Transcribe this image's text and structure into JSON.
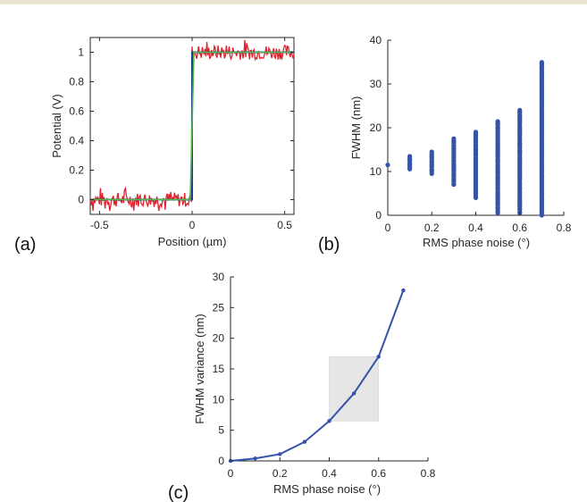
{
  "charts": {
    "a": {
      "panel_label": "(a)",
      "xlabel": "Position (µm)",
      "ylabel": "Potential (V)",
      "xticks": [
        "-0.5",
        "0",
        "0.5"
      ],
      "yticks": [
        "0",
        "0.2",
        "0.4",
        "0.6",
        "0.8",
        "1"
      ]
    },
    "b": {
      "panel_label": "(b)",
      "xlabel": "RMS phase noise (°)",
      "ylabel": "FWHM (nm)",
      "xticks": [
        "0",
        "0.2",
        "0.4",
        "0.6",
        "0.8"
      ],
      "yticks": [
        "0",
        "10",
        "20",
        "30",
        "40"
      ]
    },
    "c": {
      "panel_label": "(c)",
      "xlabel": "RMS phase noise (°)",
      "ylabel": "FWHM variance (nm)",
      "xticks": [
        "0",
        "0.2",
        "0.4",
        "0.6",
        "0.8"
      ],
      "yticks": [
        "0",
        "5",
        "10",
        "15",
        "20",
        "25",
        "30"
      ]
    }
  },
  "colors": {
    "noisy": "#e0212b",
    "fit": "#52b848",
    "ideal": "#1f3d8f",
    "scatter": "#3553a8",
    "shade": "#e6e6e6"
  },
  "chart_data": [
    {
      "type": "line",
      "xlim": [
        -0.55,
        0.55
      ],
      "ylim": [
        -0.1,
        1.1
      ],
      "series": [
        {
          "x": [
            -0.55,
            0,
            0,
            0.55
          ],
          "values": [
            0,
            0,
            1,
            1
          ]
        },
        {
          "x": [
            -0.55,
            -0.01,
            0.01,
            0.55
          ],
          "values": [
            0,
            0,
            1,
            1
          ]
        },
        {
          "x": [
            -0.55,
            0,
            0,
            0.55
          ],
          "values": [
            0,
            0,
            1,
            1
          ],
          "noise_amplitude": 0.05
        }
      ]
    },
    {
      "type": "scatter",
      "xlim": [
        0,
        0.8
      ],
      "ylim": [
        0,
        40
      ],
      "x_groups": [
        0,
        0.1,
        0.2,
        0.3,
        0.4,
        0.5,
        0.6,
        0.7
      ],
      "y_ranges": [
        [
          11.5,
          11.5
        ],
        [
          10.5,
          13.5
        ],
        [
          9.5,
          14.5
        ],
        [
          7,
          17.5
        ],
        [
          4,
          19
        ],
        [
          0.5,
          21.5
        ],
        [
          0.5,
          24
        ],
        [
          0,
          35
        ]
      ]
    },
    {
      "type": "line",
      "xlim": [
        0,
        0.8
      ],
      "ylim": [
        0,
        30
      ],
      "x": [
        0,
        0.1,
        0.2,
        0.3,
        0.4,
        0.5,
        0.6,
        0.7
      ],
      "values": [
        0,
        0.4,
        1.1,
        3.1,
        6.5,
        11,
        17,
        27.8
      ],
      "shaded_region": {
        "x": [
          0.4,
          0.6
        ],
        "y": [
          6.5,
          17
        ]
      }
    }
  ]
}
